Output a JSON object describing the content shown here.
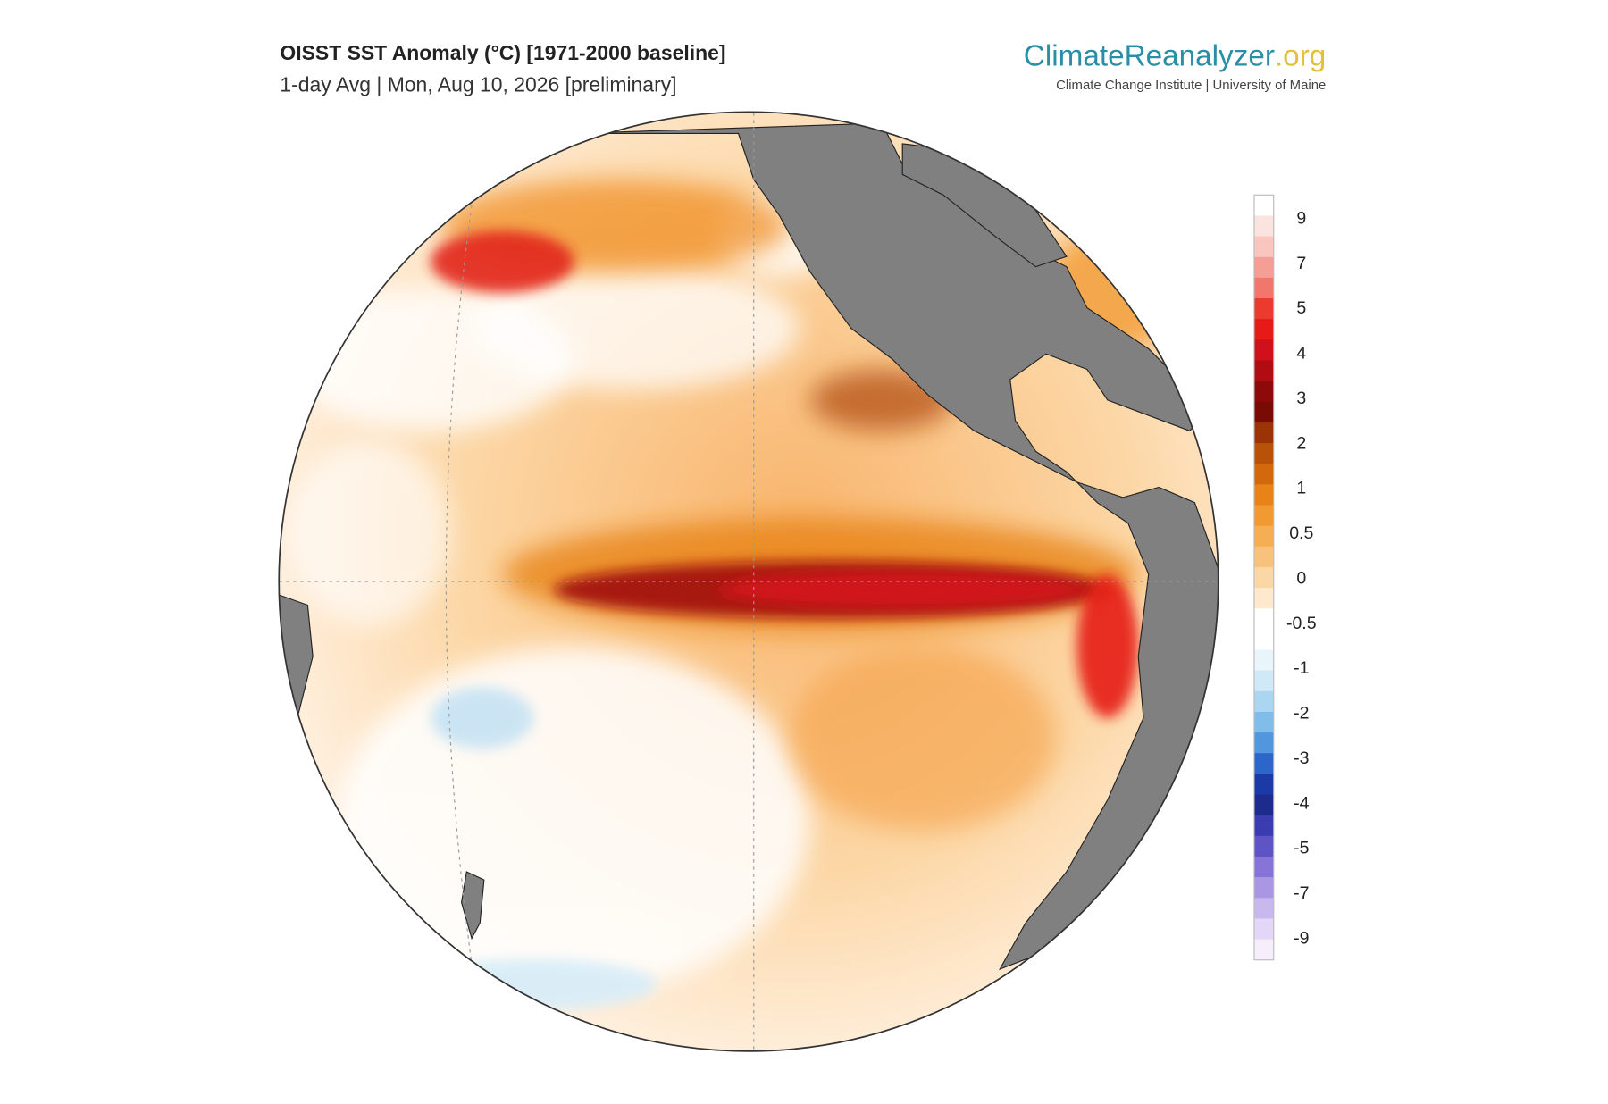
{
  "header": {
    "title": "OISST SST Anomaly (°C) [1971-2000 baseline]",
    "subtitle": "1-day Avg | Mon, Aug 10, 2026 [preliminary]"
  },
  "logo": {
    "name_main": "ClimateReanalyzer",
    "name_suffix": ".org",
    "tagline": "Climate Change Institute | University of Maine"
  },
  "colorbar": {
    "labels": [
      "9",
      "7",
      "5",
      "4",
      "3",
      "2",
      "1",
      "0.5",
      "0",
      "-0.5",
      "-1",
      "-2",
      "-3",
      "-4",
      "-5",
      "-7",
      "-9"
    ],
    "colors": [
      "#ffffff",
      "#fbe3df",
      "#f9c6bf",
      "#f59e95",
      "#f1766c",
      "#ec3a2e",
      "#e61a16",
      "#d0101a",
      "#b10c12",
      "#8e0a0a",
      "#780c04",
      "#9a3306",
      "#b85208",
      "#d2690c",
      "#e88318",
      "#f29a32",
      "#f6ae55",
      "#f9c27c",
      "#fcd7a6",
      "#fee9cf",
      "#ffffff",
      "#ffffff",
      "#e8f5fb",
      "#cfe9f7",
      "#abd6f1",
      "#81bde9",
      "#5296dd",
      "#2d66c8",
      "#1b3aa6",
      "#1c2b8c",
      "#3a3cb0",
      "#5e54c4",
      "#8675d6",
      "#aa97e3",
      "#c9b8ee",
      "#e3d6f6",
      "#f6eefb"
    ]
  }
}
